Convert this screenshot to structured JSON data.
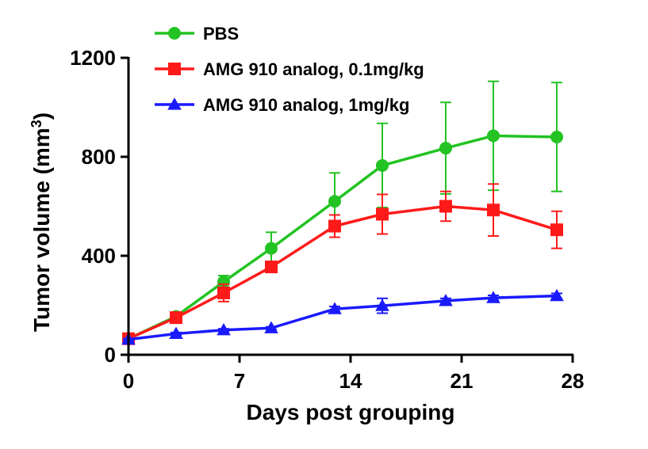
{
  "chart_data": {
    "type": "line",
    "title": "",
    "xlabel": "Days post grouping",
    "ylabel_main": "Tumor volume (mm",
    "ylabel_sup": "3",
    "ylabel_close": ")",
    "xlim": [
      0,
      28
    ],
    "ylim": [
      0,
      1200
    ],
    "x_ticks": [
      0,
      7,
      14,
      21,
      28
    ],
    "y_ticks": [
      0,
      400,
      800,
      1200
    ],
    "x_tick_labels": [
      "0",
      "7",
      "14",
      "21",
      "28"
    ],
    "y_tick_labels": [
      "0",
      "400",
      "800",
      "1200"
    ],
    "grid": false,
    "legend_position": "top",
    "series": [
      {
        "name": "PBS",
        "color": "#22c322",
        "marker": "circle",
        "x": [
          0,
          3,
          6,
          9,
          13,
          16,
          20,
          23,
          27
        ],
        "y": [
          65,
          155,
          295,
          430,
          620,
          765,
          835,
          885,
          880
        ],
        "err": [
          5,
          12,
          25,
          65,
          115,
          170,
          185,
          220,
          220
        ]
      },
      {
        "name": "AMG 910 analog, 0.1mg/kg",
        "color": "#ff1a1a",
        "marker": "square",
        "x": [
          0,
          3,
          6,
          9,
          13,
          16,
          20,
          23,
          27
        ],
        "y": [
          65,
          150,
          250,
          355,
          520,
          568,
          600,
          585,
          505
        ],
        "err": [
          5,
          12,
          35,
          15,
          45,
          80,
          60,
          105,
          75
        ]
      },
      {
        "name": "AMG 910 analog, 1mg/kg",
        "color": "#1a1aff",
        "marker": "triangle",
        "x": [
          0,
          3,
          6,
          9,
          13,
          16,
          20,
          23,
          27
        ],
        "y": [
          62,
          85,
          100,
          108,
          185,
          198,
          218,
          230,
          238
        ],
        "err": [
          3,
          5,
          5,
          5,
          10,
          30,
          10,
          10,
          10
        ]
      }
    ]
  }
}
